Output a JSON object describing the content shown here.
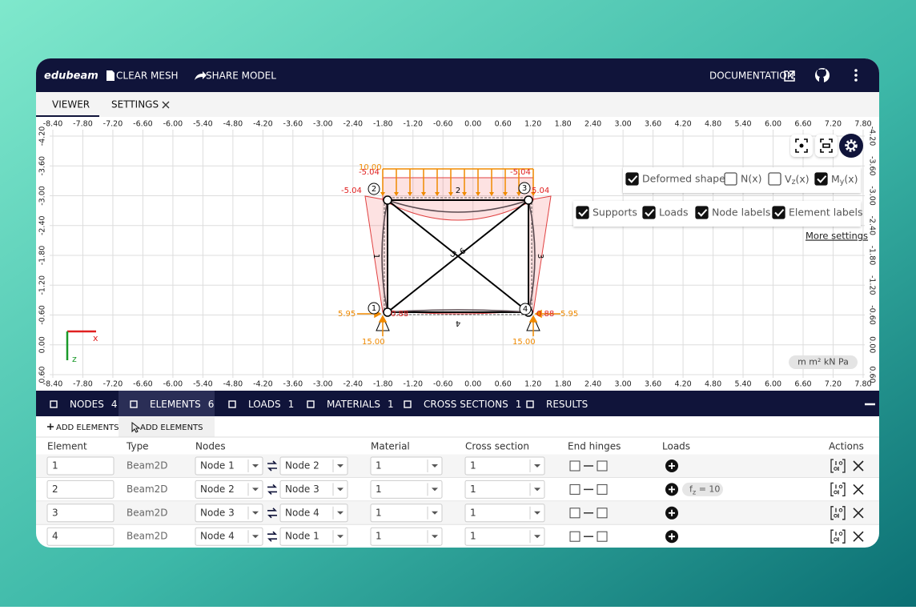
{
  "header": {
    "logo": "edubeam",
    "actions": [
      "CLEAR MESH",
      "SHARE MODEL"
    ],
    "documentation": "DOCUMENTATION"
  },
  "tabs": [
    "VIEWER",
    "SETTINGS"
  ],
  "ruler": {
    "x_labels": [
      "-8.40",
      "-7.80",
      "-7.20",
      "-6.60",
      "-6.00",
      "-5.40",
      "-4.80",
      "-4.20",
      "-3.60",
      "-3.00",
      "-2.40",
      "-1.80",
      "-1.20",
      "-0.60",
      "0.00",
      "0.60",
      "1.20",
      "1.80",
      "2.40",
      "3.00",
      "3.60",
      "4.20",
      "4.80",
      "5.40",
      "6.00",
      "6.60",
      "7.20",
      "7.80"
    ],
    "y_labels": [
      "-4.20",
      "-3.60",
      "-3.00",
      "-2.40",
      "-1.80",
      "-1.20",
      "-0.60",
      "0.00",
      "0.60"
    ]
  },
  "viewer": {
    "annotations": [
      "10.00",
      "-5.04",
      "-5.04",
      "-5.04",
      "5.04",
      "5.95",
      "5.95",
      "0.88",
      "0.88",
      "15.00",
      "15.00"
    ],
    "node_labels": [
      "1",
      "2",
      "3",
      "4"
    ],
    "element_labels": [
      "1",
      "2",
      "3",
      "4",
      "5",
      "6"
    ],
    "axes": [
      "x",
      "z"
    ],
    "display_options": [
      {
        "label": "Deformed shape",
        "checked": true
      },
      {
        "label": "N(x)",
        "checked": false
      },
      {
        "label": {
          "main": "V",
          "sub": "z",
          "rest": "(x)"
        },
        "checked": false
      },
      {
        "label": {
          "main": "M",
          "sub": "y",
          "rest": "(x)"
        },
        "checked": true
      }
    ],
    "layer_options": [
      {
        "label": "Supports",
        "checked": true
      },
      {
        "label": "Loads",
        "checked": true
      },
      {
        "label": "Node labels",
        "checked": true
      },
      {
        "label": "Element labels",
        "checked": true
      }
    ],
    "more_settings": "More settings",
    "units": "m m² kN Pa"
  },
  "panel": {
    "tabs": [
      {
        "label": "NODES",
        "count": 4
      },
      {
        "label": "ELEMENTS",
        "count": 6
      },
      {
        "label": "LOADS",
        "count": 1
      },
      {
        "label": "MATERIALS",
        "count": 1
      },
      {
        "label": "CROSS SECTIONS",
        "count": 1
      },
      {
        "label": "RESULTS"
      }
    ],
    "sub_tabs": [
      "ADD ELEMENTS",
      "ADD ELEMENTS"
    ],
    "table": {
      "columns": [
        "Element",
        "Type",
        "Nodes",
        "Material",
        "Cross section",
        "End hinges",
        "Loads",
        "Actions"
      ],
      "rows": [
        {
          "element": "1",
          "type": "Beam2D",
          "node_a": "Node 1",
          "node_b": "Node 2",
          "material": "1",
          "cross_section": "1"
        },
        {
          "element": "2",
          "type": "Beam2D",
          "node_a": "Node 2",
          "node_b": "Node 3",
          "material": "1",
          "cross_section": "1",
          "load": {
            "main": "f",
            "sub": "z",
            "rest": " = 10"
          }
        },
        {
          "element": "3",
          "type": "Beam2D",
          "node_a": "Node 3",
          "node_b": "Node 4",
          "material": "1",
          "cross_section": "1"
        },
        {
          "element": "4",
          "type": "Beam2D",
          "node_a": "Node 4",
          "node_b": "Node 1",
          "material": "1",
          "cross_section": "1"
        }
      ]
    }
  }
}
